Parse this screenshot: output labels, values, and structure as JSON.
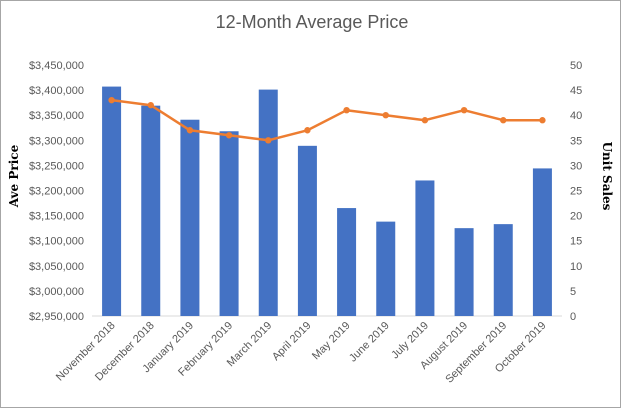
{
  "chart_data": {
    "type": "bar",
    "title": "12-Month Average Price",
    "categories": [
      "November 2018",
      "December 2018",
      "January 2019",
      "February 2019",
      "March 2019",
      "April 2019",
      "May 2019",
      "June 2019",
      "July 2019",
      "August 2019",
      "September 2019",
      "October 2019"
    ],
    "series": [
      {
        "name": "",
        "chart_type": "bar",
        "axis": "left",
        "color": "#4472c4",
        "values": [
          3407000,
          3369000,
          3341000,
          3318000,
          3401000,
          3289000,
          3165000,
          3138000,
          3220000,
          3125000,
          3133000,
          3244000
        ]
      },
      {
        "name": "",
        "chart_type": "line",
        "axis": "right",
        "color": "#ed7d31",
        "values": [
          43,
          42,
          37,
          36,
          35,
          37,
          41,
          40,
          39,
          41,
          39,
          39
        ]
      }
    ],
    "ylabel": "Ave Price",
    "y2label": "Unit Sales",
    "ylim": [
      2950000,
      3450000
    ],
    "y2lim": [
      0,
      50
    ],
    "y_ticks": [
      "$2,950,000",
      "$3,000,000",
      "$3,050,000",
      "$3,100,000",
      "$3,150,000",
      "$3,200,000",
      "$3,250,000",
      "$3,300,000",
      "$3,350,000",
      "$3,400,000",
      "$3,450,000"
    ],
    "y2_ticks": [
      "0",
      "5",
      "10",
      "15",
      "20",
      "25",
      "30",
      "35",
      "40",
      "45",
      "50"
    ],
    "grid": false,
    "legend": "none"
  }
}
